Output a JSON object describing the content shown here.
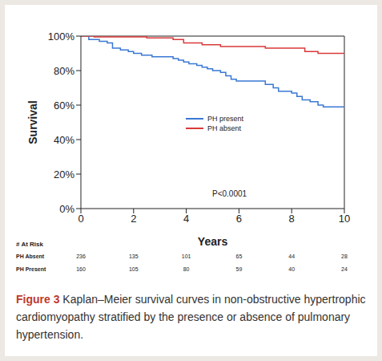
{
  "chart_data": {
    "type": "line",
    "line_style": "step",
    "title": "Figure 3",
    "subtitle": "Kaplan–Meier survival curves in non-obstructive hypertrophic cardiomyopathy stratified by the presence or absence of pulmonary hypertension.",
    "x_label": "Years",
    "y_label": "Survival",
    "annotation": "P<0.0001",
    "legend": "right",
    "grid": false,
    "xlim": [
      0,
      10
    ],
    "xticks": [
      0,
      2,
      4,
      6,
      8,
      10
    ],
    "ylim": [
      0,
      100
    ],
    "yticks": [
      {
        "value": 0,
        "label": "0%"
      },
      {
        "value": 20,
        "label": "20%"
      },
      {
        "value": 40,
        "label": "40%"
      },
      {
        "value": 60,
        "label": "60%"
      },
      {
        "value": 80,
        "label": "80%"
      },
      {
        "value": 100,
        "label": "100%"
      }
    ],
    "series": [
      {
        "name": "PH present",
        "color": "#3a78d4",
        "x": [
          0,
          0.3,
          0.7,
          1.0,
          1.2,
          1.5,
          1.8,
          2.0,
          2.3,
          2.7,
          3.5,
          3.7,
          3.9,
          4.1,
          4.4,
          4.6,
          4.8,
          5.0,
          5.3,
          5.5,
          5.7,
          5.9,
          7.0,
          7.3,
          7.5,
          8.0,
          8.2,
          8.4,
          8.7,
          9.0,
          9.2,
          10
        ],
        "values": [
          100,
          98,
          97,
          96,
          93,
          92,
          91,
          90,
          89,
          88,
          87,
          86,
          85,
          84,
          83,
          82,
          81,
          80,
          79,
          77,
          75,
          74,
          72,
          70,
          68,
          67,
          65,
          63,
          62,
          60,
          59,
          59
        ]
      },
      {
        "name": "PH absent",
        "color": "#d93a3a",
        "x": [
          0,
          0.5,
          2.5,
          3.5,
          3.9,
          4.6,
          5.3,
          7.0,
          8.5,
          9.0,
          10
        ],
        "values": [
          100,
          99.5,
          99,
          98,
          96,
          95,
          94,
          93,
          91,
          90,
          90
        ]
      }
    ],
    "at_risk": {
      "title": "# At Risk",
      "x": [
        0,
        2,
        4,
        6,
        8,
        10
      ],
      "rows": [
        {
          "name": "PH Absent",
          "values": [
            236,
            135,
            101,
            65,
            44,
            28
          ]
        },
        {
          "name": "PH Present",
          "values": [
            160,
            105,
            80,
            59,
            40,
            24
          ]
        }
      ]
    }
  }
}
